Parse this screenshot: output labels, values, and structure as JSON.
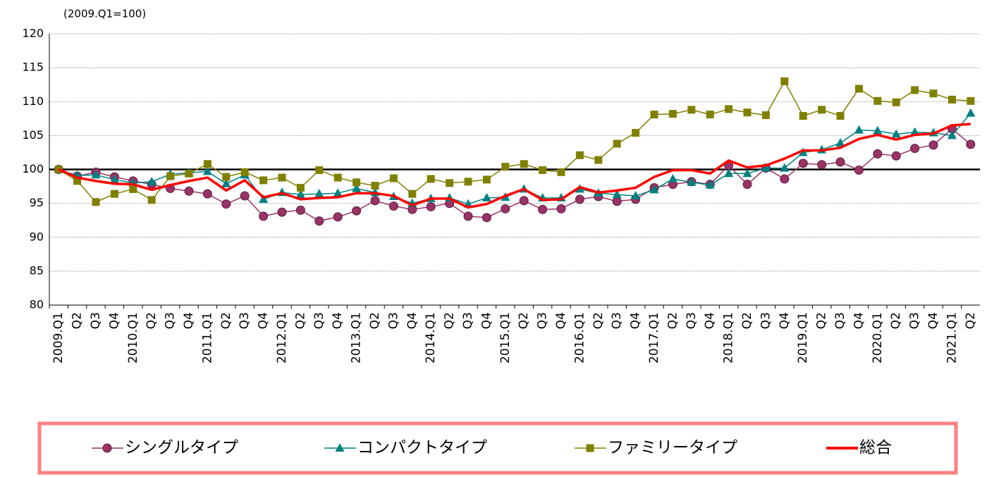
{
  "chart_data": {
    "type": "line",
    "note": "(2009.Q1=100)",
    "categories": [
      "2009.Q1",
      "Q2",
      "Q3",
      "Q4",
      "2010.Q1",
      "Q2",
      "Q3",
      "Q4",
      "2011.Q1",
      "Q2",
      "Q3",
      "Q4",
      "2012.Q1",
      "Q2",
      "Q3",
      "Q4",
      "2013.Q1",
      "Q2",
      "Q3",
      "Q4",
      "2014.Q1",
      "Q2",
      "Q3",
      "Q4",
      "2015.Q1",
      "Q2",
      "Q3",
      "Q4",
      "2016.Q1",
      "Q2",
      "Q3",
      "Q4",
      "2017.Q1",
      "Q2",
      "Q3",
      "Q4",
      "2018.Q1",
      "Q2",
      "Q3",
      "Q4",
      "2019.Q1",
      "Q2",
      "Q3",
      "Q4",
      "2020.Q1",
      "Q2",
      "Q3",
      "Q4",
      "2021.Q1",
      "Q2"
    ],
    "series": [
      {
        "name": "シングルタイプ",
        "color": "#993366",
        "marker": "circle",
        "values": [
          100,
          99.0,
          99.6,
          98.9,
          98.3,
          97.8,
          97.2,
          96.8,
          96.4,
          94.9,
          96.1,
          93.1,
          93.7,
          94.0,
          92.4,
          93.0,
          93.9,
          95.4,
          94.6,
          94.1,
          94.5,
          95.0,
          93.1,
          92.9,
          94.2,
          95.4,
          94.1,
          94.2,
          95.6,
          96.0,
          95.3,
          95.6,
          97.3,
          97.8,
          98.2,
          97.8,
          100.6,
          97.8,
          100.2,
          98.6,
          100.9,
          100.7,
          101.1,
          99.9,
          102.3,
          102.0,
          103.1,
          103.6,
          106.0,
          103.7
        ]
      },
      {
        "name": "コンパクトタイプ",
        "color": "#008080",
        "marker": "triangle",
        "values": [
          100,
          99.1,
          99.2,
          98.5,
          98.0,
          98.2,
          99.3,
          99.5,
          99.7,
          97.9,
          99.2,
          95.6,
          96.6,
          96.3,
          96.4,
          96.5,
          97.2,
          96.6,
          96.0,
          95.0,
          95.7,
          95.8,
          94.9,
          95.8,
          95.9,
          97.1,
          95.8,
          95.8,
          97.1,
          96.5,
          96.3,
          96.1,
          97.0,
          98.6,
          98.1,
          97.7,
          99.4,
          99.4,
          100.2,
          100.2,
          102.5,
          102.9,
          103.9,
          105.8,
          105.7,
          105.2,
          105.5,
          105.4,
          105.0,
          108.3
        ]
      },
      {
        "name": "ファミリータイプ",
        "color": "#808000",
        "marker": "square",
        "values": [
          100,
          98.3,
          95.2,
          96.4,
          97.1,
          95.5,
          99.0,
          99.4,
          100.8,
          98.9,
          99.6,
          98.4,
          98.8,
          97.3,
          99.9,
          98.8,
          98.1,
          97.6,
          98.7,
          96.4,
          98.6,
          98.0,
          98.2,
          98.5,
          100.4,
          100.8,
          99.9,
          99.6,
          102.1,
          101.4,
          103.8,
          105.4,
          108.1,
          108.2,
          108.8,
          108.1,
          108.9,
          108.4,
          108.0,
          113.0,
          107.9,
          108.8,
          107.9,
          111.9,
          110.1,
          109.9,
          111.7,
          111.2,
          110.3,
          110.1
        ]
      },
      {
        "name": "総合",
        "color": "#ff0000",
        "marker": "none",
        "values": [
          100,
          98.8,
          98.3,
          97.9,
          97.8,
          97.0,
          97.7,
          98.3,
          98.8,
          96.9,
          98.4,
          95.9,
          96.5,
          95.6,
          95.8,
          95.9,
          96.5,
          96.5,
          96.1,
          94.7,
          95.7,
          95.7,
          94.4,
          94.9,
          96.1,
          97.1,
          95.5,
          95.6,
          97.4,
          96.6,
          96.9,
          97.3,
          98.9,
          99.9,
          99.9,
          99.4,
          101.3,
          100.3,
          100.6,
          101.6,
          102.8,
          102.8,
          103.2,
          104.5,
          105.1,
          104.4,
          105.1,
          105.3,
          106.5,
          106.7
        ]
      }
    ],
    "ylim": [
      80,
      120
    ],
    "yticks": [
      80,
      85,
      90,
      95,
      100,
      105,
      110,
      115,
      120
    ],
    "reference_line": 100,
    "grid": true
  }
}
